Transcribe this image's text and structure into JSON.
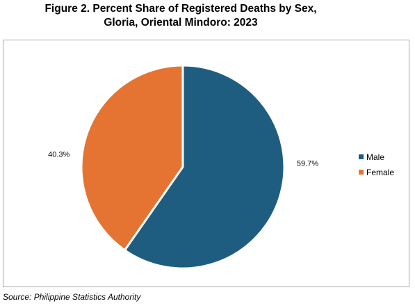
{
  "title_line1": "Figure 2. Percent Share of Registered Deaths by Sex,",
  "title_line2": "Gloria, Oriental Mindoro: 2023",
  "source": "Source: Philippine Statistics Authority",
  "chart_data": {
    "type": "pie",
    "title": "Figure 2. Percent Share of Registered Deaths by Sex, Gloria, Oriental Mindoro: 2023",
    "categories": [
      "Male",
      "Female"
    ],
    "values": [
      59.7,
      40.3
    ],
    "labels": [
      "59.7%",
      "40.3%"
    ],
    "colors": [
      "#1f5d80",
      "#e57432"
    ],
    "legend_position": "right"
  }
}
